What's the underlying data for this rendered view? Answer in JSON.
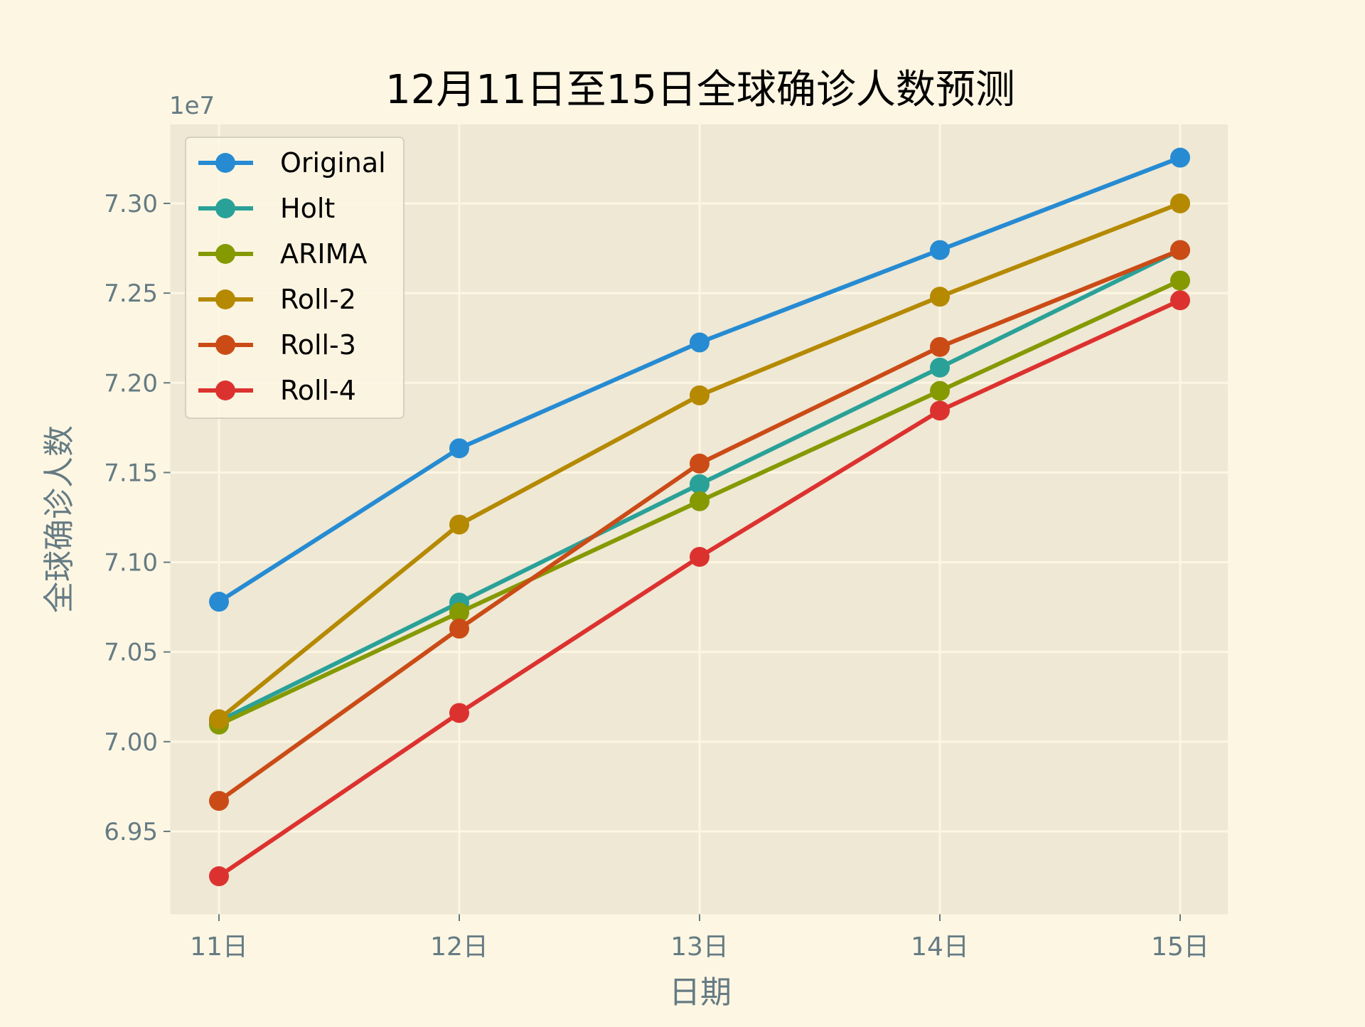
{
  "chart_data": {
    "type": "line",
    "title": "12月11日至15日全球确诊人数预测",
    "xlabel": "日期",
    "ylabel": "全球确诊人数",
    "offset_label": "1e7",
    "categories": [
      "11日",
      "12日",
      "13日",
      "14日",
      "15日"
    ],
    "y_scale_factor": 10000000,
    "yticks": [
      6.95,
      7.0,
      7.05,
      7.1,
      7.15,
      7.2,
      7.25,
      7.3
    ],
    "ytick_labels": [
      "6.95",
      "7.00",
      "7.05",
      "7.10",
      "7.15",
      "7.20",
      "7.25",
      "7.30"
    ],
    "ylim": [
      6.904,
      7.344
    ],
    "grid": true,
    "legend_position": "top-left",
    "series": [
      {
        "name": "Original",
        "color": "#268bd2",
        "values": [
          70780000,
          71635000,
          72225000,
          72740000,
          73255000
        ]
      },
      {
        "name": "Holt",
        "color": "#2aa198",
        "values": [
          70115000,
          70775000,
          71435000,
          72085000,
          72740000
        ]
      },
      {
        "name": "ARIMA",
        "color": "#859900",
        "values": [
          70095000,
          70720000,
          71340000,
          71955000,
          72570000
        ]
      },
      {
        "name": "Roll-2",
        "color": "#b58900",
        "values": [
          70125000,
          71210000,
          71930000,
          72480000,
          73000000
        ]
      },
      {
        "name": "Roll-3",
        "color": "#cb4b16",
        "values": [
          69670000,
          70630000,
          71550000,
          72200000,
          72740000
        ]
      },
      {
        "name": "Roll-4",
        "color": "#dc322f",
        "values": [
          69250000,
          70160000,
          71030000,
          71845000,
          72460000
        ]
      }
    ],
    "colors": {
      "page_background": "#fdf6e3",
      "plot_background": "#eee8d5",
      "grid": "#fdf6e3",
      "axis_text": "#657b83",
      "title_text": "#000000"
    }
  }
}
